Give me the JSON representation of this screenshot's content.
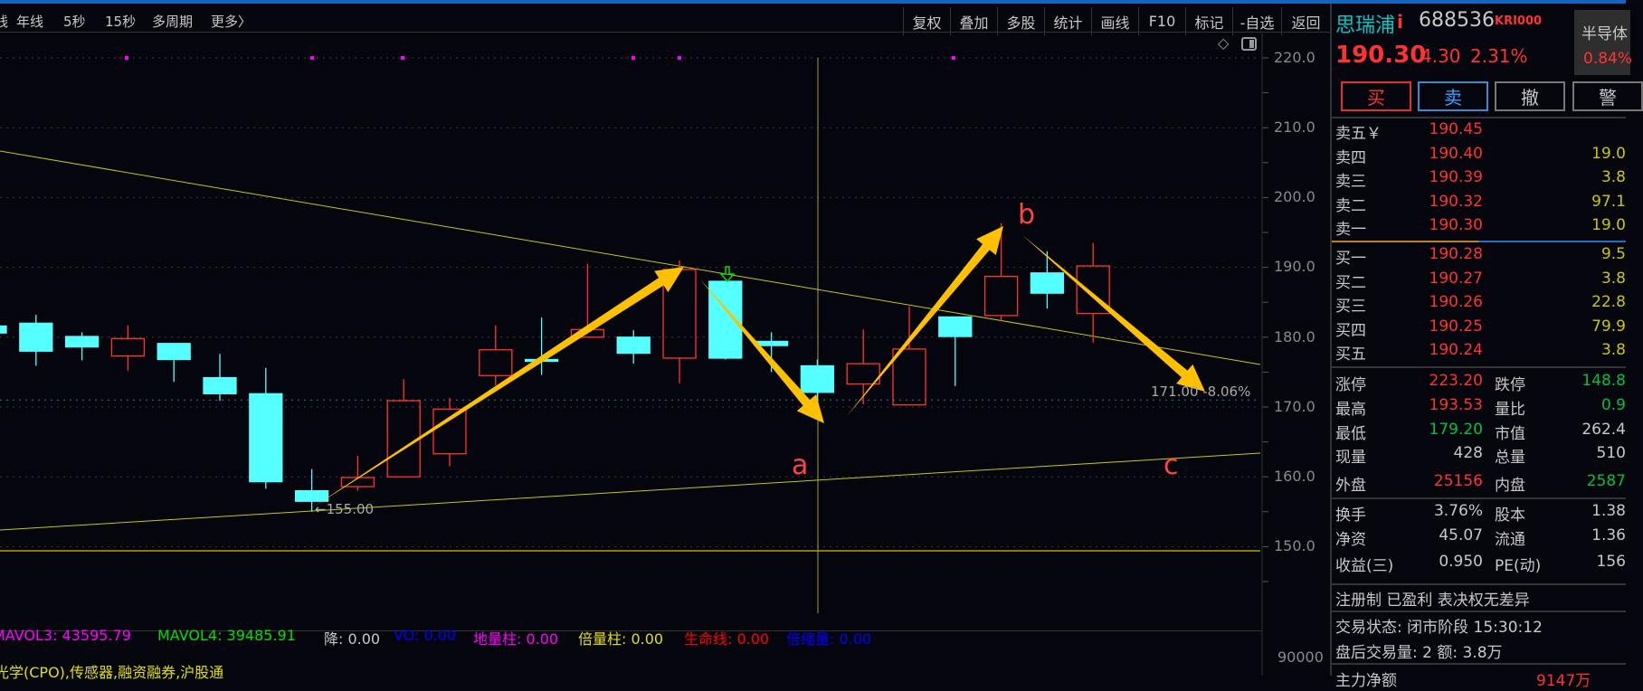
{
  "toolbar": {
    "periods": [
      "线",
      "年线",
      "5秒",
      "15秒",
      "多周期",
      "更多〉"
    ],
    "buttons": [
      "复权",
      "叠加",
      "多股",
      "统计",
      "画线",
      "F10",
      "标记",
      "-自选",
      "返回"
    ]
  },
  "chart_data": {
    "type": "candlestick",
    "y_ticks": [
      "220.0",
      "210.0",
      "200.0",
      "190.0",
      "180.0",
      "170.0",
      "160.0",
      "150.0"
    ],
    "ylim": [
      145,
      222
    ],
    "volume_tick": "90000",
    "candles": [
      {
        "o": 181.6,
        "c": 180.6,
        "h": 181.8,
        "l": 180.4
      },
      {
        "o": 182.0,
        "c": 178.0,
        "h": 183.2,
        "l": 175.9
      },
      {
        "o": 180.1,
        "c": 178.6,
        "h": 180.7,
        "l": 176.7
      },
      {
        "o": 177.3,
        "c": 179.8,
        "h": 181.7,
        "l": 175.2
      },
      {
        "o": 179.1,
        "c": 176.8,
        "h": 179.1,
        "l": 173.6
      },
      {
        "o": 174.2,
        "c": 171.9,
        "h": 177.6,
        "l": 170.9
      },
      {
        "o": 171.9,
        "c": 159.3,
        "h": 175.6,
        "l": 158.3
      },
      {
        "o": 158.0,
        "c": 156.5,
        "h": 161.1,
        "l": 155.0
      },
      {
        "o": 158.6,
        "c": 159.9,
        "h": 163.0,
        "l": 158.0
      },
      {
        "o": 160.0,
        "c": 170.9,
        "h": 174.0,
        "l": 160.0
      },
      {
        "o": 163.3,
        "c": 169.7,
        "h": 171.3,
        "l": 161.5
      },
      {
        "o": 174.5,
        "c": 178.2,
        "h": 181.7,
        "l": 173.1
      },
      {
        "o": 176.8,
        "c": 176.6,
        "h": 182.8,
        "l": 174.6
      },
      {
        "o": 180.0,
        "c": 181.1,
        "h": 190.5,
        "l": 180.0
      },
      {
        "o": 180.0,
        "c": 177.7,
        "h": 181.0,
        "l": 176.2
      },
      {
        "o": 177.0,
        "c": 189.7,
        "h": 191.0,
        "l": 173.4
      },
      {
        "o": 188.0,
        "c": 177.0,
        "h": 188.0,
        "l": 176.8
      },
      {
        "o": 179.4,
        "c": 178.8,
        "h": 180.7,
        "l": 175.0
      },
      {
        "o": 175.9,
        "c": 172.1,
        "h": 176.8,
        "l": 169.7
      },
      {
        "o": 173.3,
        "c": 176.2,
        "h": 181.1,
        "l": 170.4
      },
      {
        "o": 170.3,
        "c": 178.3,
        "h": 184.4,
        "l": 170.3
      },
      {
        "o": 182.9,
        "c": 180.1,
        "h": 182.9,
        "l": 173.0
      },
      {
        "o": 183.1,
        "c": 188.7,
        "h": 196.3,
        "l": 182.3
      },
      {
        "o": 189.2,
        "c": 186.3,
        "h": 192.3,
        "l": 184.1
      },
      {
        "o": 183.4,
        "c": 190.2,
        "h": 193.5,
        "l": 179.2
      }
    ],
    "low_label": "←155.00",
    "price_line_label": "171.00 -8.06%",
    "wave_labels": [
      "a",
      "b",
      "c"
    ],
    "colors": {
      "up": "#ff3333",
      "down": "#55ffff",
      "arrow": "#ffc000",
      "trend": "#c8c800",
      "marker": "#ff00ff"
    }
  },
  "indicators": [
    {
      "text": "MAVOL3: 43595.79",
      "color": "#ff00ff"
    },
    {
      "text": "MAVOL4: 39485.91",
      "color": "#00e000"
    },
    {
      "text": "降: 0.00",
      "color": "#c8c8c8"
    },
    {
      "text": "VO: 0.00",
      "color": "#0000ff"
    },
    {
      "text": "地量柱: 0.00",
      "color": "#ff00ff"
    },
    {
      "text": "倍量柱: 0.00",
      "color": "#e0e000"
    },
    {
      "text": "生命线: 0.00",
      "color": "#ff0000"
    },
    {
      "text": "倍缩量: 0.00",
      "color": "#0000ff"
    }
  ],
  "concepts": "光学(CPO),传感器,融资融券,沪股通",
  "quote": {
    "name": "思瑞浦",
    "name_flag": "i",
    "code": "688536",
    "tags": "KRI000",
    "price": "190.30",
    "change": "4.30",
    "pct": "2.31%",
    "sector": "半导体",
    "sector_pct": "0.84%",
    "buttons": [
      "买",
      "卖",
      "撤",
      "警"
    ],
    "asks": [
      [
        "卖五￥",
        "190.45",
        ""
      ],
      [
        "卖四",
        "190.40",
        "19.0"
      ],
      [
        "卖三",
        "190.39",
        "3.8"
      ],
      [
        "卖二",
        "190.32",
        "97.1"
      ],
      [
        "卖一",
        "190.30",
        "19.0"
      ]
    ],
    "bids": [
      [
        "买一",
        "190.28",
        "9.5"
      ],
      [
        "买二",
        "190.27",
        "3.8"
      ],
      [
        "买三",
        "190.26",
        "22.8"
      ],
      [
        "买四",
        "190.25",
        "79.9"
      ],
      [
        "买五",
        "190.24",
        "3.8"
      ]
    ],
    "stats": [
      [
        "涨停",
        "223.20",
        "跌停",
        "148.8"
      ],
      [
        "最高",
        "193.53",
        "量比",
        "0.9"
      ],
      [
        "最低",
        "179.20",
        "市值",
        "262.4"
      ],
      [
        "现量",
        "428",
        "总量",
        "510"
      ],
      [
        "外盘",
        "25156",
        "内盘",
        "2587"
      ]
    ],
    "fund": [
      [
        "换手",
        "3.76%",
        "股本",
        "1.38"
      ],
      [
        "净资",
        "45.07",
        "流通",
        "1.36"
      ],
      [
        "收益(三)",
        "0.950",
        "PE(动)",
        "156"
      ]
    ],
    "tags_line": "注册制 已盈利 表决权无差异",
    "status": "交易状态: 闭市阶段 15:30:12",
    "after_hours": "盘后交易量: 2  额: 3.8万",
    "main_net_label": "主力净额",
    "main_net_value": "9147万"
  }
}
